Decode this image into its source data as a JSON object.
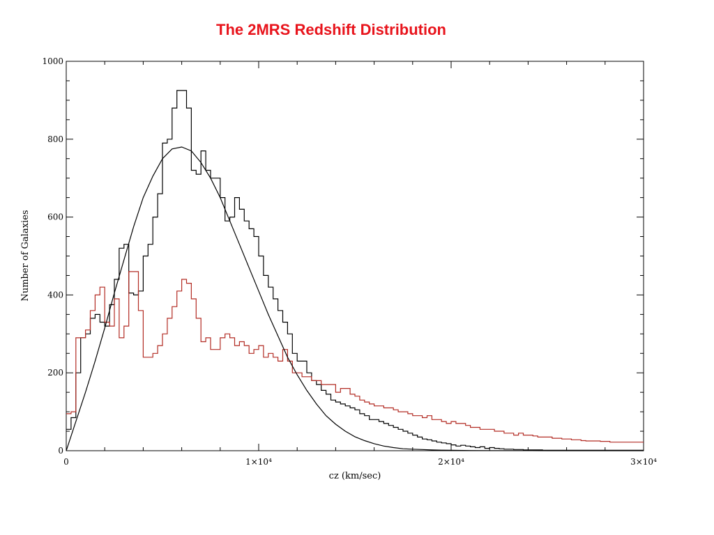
{
  "page": {
    "title": "The 2MRS Redshift Distribution",
    "title_color": "#e8141c"
  },
  "chart_data": {
    "type": "line",
    "title": "The 2MRS Redshift Distribution",
    "xlabel": "cz (km/sec)",
    "ylabel": "Number of Galaxies",
    "xlim": [
      0,
      30000
    ],
    "ylim": [
      0,
      1000
    ],
    "x_tick_values": [
      0,
      10000,
      20000,
      30000
    ],
    "x_tick_labels": [
      "0",
      "1×10⁴",
      "2×10⁴",
      "3×10⁴"
    ],
    "y_tick_values": [
      0,
      200,
      400,
      600,
      800,
      1000
    ],
    "y_tick_labels": [
      "0",
      "200",
      "400",
      "600",
      "800",
      "1000"
    ],
    "grid": false,
    "bin_width": 250,
    "series": [
      {
        "style": "step",
        "color": "#000000",
        "values": [
          55,
          85,
          200,
          290,
          300,
          340,
          350,
          330,
          320,
          375,
          440,
          520,
          530,
          405,
          400,
          410,
          500,
          530,
          600,
          660,
          790,
          800,
          880,
          925,
          925,
          880,
          720,
          710,
          770,
          720,
          700,
          700,
          650,
          590,
          600,
          650,
          620,
          590,
          570,
          550,
          500,
          450,
          420,
          390,
          360,
          330,
          300,
          250,
          230,
          230,
          200,
          180,
          170,
          155,
          145,
          130,
          125,
          120,
          115,
          110,
          105,
          95,
          90,
          80,
          80,
          75,
          70,
          65,
          60,
          55,
          50,
          45,
          40,
          35,
          30,
          28,
          25,
          22,
          20,
          18,
          15,
          12,
          14,
          12,
          10,
          8,
          10,
          6,
          8,
          6,
          5,
          4,
          4,
          3,
          3,
          2,
          2,
          2,
          2,
          1,
          1,
          1,
          1,
          1,
          1,
          1,
          1,
          1,
          1,
          1,
          1,
          1,
          1,
          1,
          1,
          1,
          1,
          1,
          1,
          1
        ]
      },
      {
        "style": "step",
        "color": "#b22a22",
        "values": [
          95,
          100,
          290,
          290,
          310,
          360,
          400,
          420,
          330,
          320,
          390,
          290,
          320,
          460,
          460,
          360,
          240,
          240,
          250,
          270,
          300,
          340,
          370,
          410,
          440,
          430,
          390,
          340,
          280,
          290,
          260,
          260,
          290,
          300,
          290,
          270,
          280,
          270,
          250,
          260,
          270,
          240,
          250,
          240,
          230,
          260,
          230,
          200,
          200,
          190,
          190,
          180,
          180,
          170,
          170,
          170,
          150,
          160,
          160,
          145,
          140,
          130,
          125,
          120,
          115,
          115,
          110,
          110,
          105,
          100,
          100,
          95,
          90,
          90,
          85,
          90,
          80,
          80,
          75,
          70,
          75,
          70,
          70,
          65,
          60,
          60,
          55,
          55,
          55,
          50,
          50,
          45,
          45,
          40,
          45,
          40,
          40,
          38,
          35,
          35,
          35,
          32,
          32,
          30,
          30,
          28,
          28,
          26,
          25,
          25,
          25,
          24,
          24,
          22,
          22,
          22,
          22,
          22,
          22,
          22
        ]
      },
      {
        "style": "smooth",
        "color": "#000000",
        "label": "",
        "x": [
          0,
          500,
          1000,
          1500,
          2000,
          2500,
          3000,
          3500,
          4000,
          4500,
          5000,
          5500,
          6000,
          6500,
          7000,
          7500,
          8000,
          8500,
          9000,
          9500,
          10000,
          10500,
          11000,
          11500,
          12000,
          12500,
          13000,
          13500,
          14000,
          14500,
          15000,
          15500,
          16000,
          16500,
          17000,
          17500,
          18000,
          18500,
          19000,
          19500,
          20000,
          21000,
          22000,
          23000,
          24000,
          25000,
          26000,
          27000,
          28000,
          29000,
          30000
        ],
        "y": [
          0,
          75,
          150,
          230,
          315,
          405,
          490,
          575,
          650,
          705,
          750,
          775,
          780,
          770,
          740,
          700,
          650,
          590,
          530,
          470,
          410,
          350,
          295,
          240,
          195,
          155,
          120,
          90,
          68,
          50,
          36,
          26,
          18,
          12,
          8,
          5,
          4,
          3,
          2,
          1.5,
          1,
          0.5,
          0.3,
          0.2,
          0.1,
          0,
          0,
          0,
          0,
          0,
          0
        ]
      }
    ]
  }
}
